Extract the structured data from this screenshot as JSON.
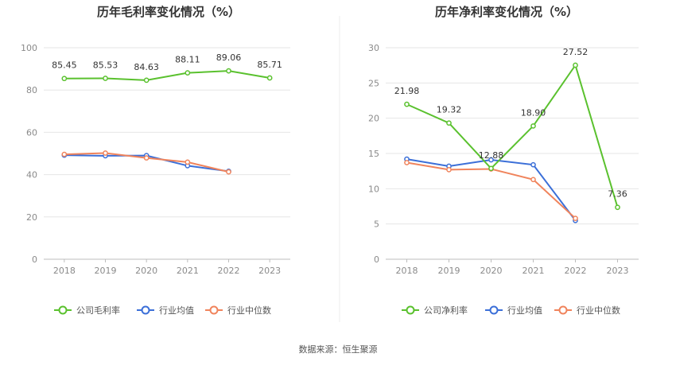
{
  "source": "数据来源：恒生聚源",
  "chart_data": [
    {
      "type": "line",
      "title": "历年毛利率变化情况（%）",
      "categories": [
        "2018",
        "2019",
        "2020",
        "2021",
        "2022",
        "2023"
      ],
      "ylim": [
        0,
        100
      ],
      "yticks": [
        0,
        20,
        40,
        60,
        80,
        100
      ],
      "grid": true,
      "legend_position": "bottom",
      "series": [
        {
          "name": "公司毛利率",
          "color": "#5ac12e",
          "values": [
            85.45,
            85.53,
            84.63,
            88.11,
            89.06,
            85.71
          ],
          "labels": [
            "85.45",
            "85.53",
            "84.63",
            "88.11",
            "89.06",
            "85.71"
          ]
        },
        {
          "name": "行业均值",
          "color": "#3b6fd8",
          "values": [
            49.2,
            48.9,
            49.0,
            44.2,
            41.6,
            null
          ]
        },
        {
          "name": "行业中位数",
          "color": "#f0845c",
          "values": [
            49.6,
            50.2,
            47.9,
            45.9,
            41.3,
            null
          ]
        }
      ]
    },
    {
      "type": "line",
      "title": "历年净利率变化情况（%）",
      "categories": [
        "2018",
        "2019",
        "2020",
        "2021",
        "2022",
        "2023"
      ],
      "ylim": [
        0,
        30
      ],
      "yticks": [
        0,
        5,
        10,
        15,
        20,
        25,
        30
      ],
      "grid": true,
      "legend_position": "bottom",
      "series": [
        {
          "name": "公司净利率",
          "color": "#5ac12e",
          "values": [
            21.98,
            19.32,
            12.88,
            18.9,
            27.52,
            7.36
          ],
          "labels": [
            "21.98",
            "19.32",
            "12.88",
            "18.90",
            "27.52",
            "7.36"
          ]
        },
        {
          "name": "行业均值",
          "color": "#3b6fd8",
          "values": [
            14.2,
            13.2,
            14.1,
            13.4,
            5.5,
            null
          ]
        },
        {
          "name": "行业中位数",
          "color": "#f0845c",
          "values": [
            13.7,
            12.7,
            12.8,
            11.3,
            5.8,
            null
          ]
        }
      ]
    }
  ]
}
